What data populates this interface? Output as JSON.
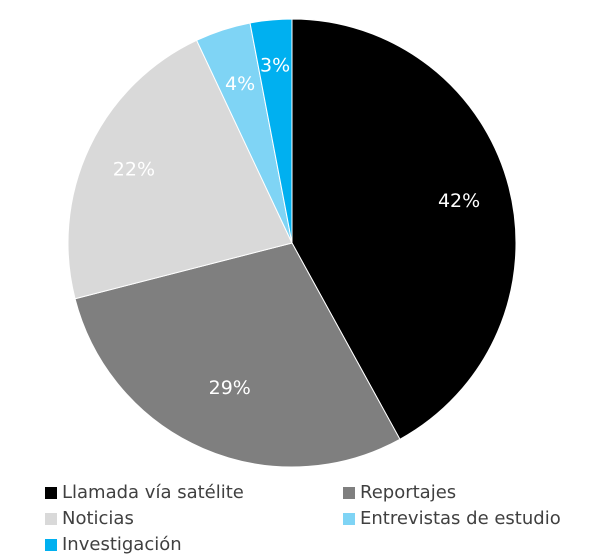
{
  "chart_data": {
    "type": "pie",
    "title": "",
    "categories": [
      "Llamada vía satélite",
      "Reportajes",
      "Noticias",
      "Entrevistas de estudio",
      "Investigación"
    ],
    "values": [
      42,
      29,
      22,
      4,
      3
    ],
    "labels": [
      "42%",
      "29%",
      "22%",
      "4%",
      "3%"
    ],
    "colors": [
      "#000000",
      "#7f7f7f",
      "#d9d9d9",
      "#7fd4f5",
      "#00b0f0"
    ],
    "label_colors": [
      "#ffffff",
      "#ffffff",
      "#ffffff",
      "#ffffff",
      "#ffffff"
    ],
    "start_angle_deg": 0,
    "direction": "clockwise",
    "legend_position": "bottom"
  },
  "legend": {
    "items": [
      {
        "label": "Llamada vía satélite",
        "color": "#000000"
      },
      {
        "label": "Reportajes",
        "color": "#7f7f7f"
      },
      {
        "label": "Noticias",
        "color": "#d9d9d9"
      },
      {
        "label": "Entrevistas de estudio",
        "color": "#7fd4f5"
      },
      {
        "label": "Investigación",
        "color": "#00b0f0"
      }
    ]
  }
}
